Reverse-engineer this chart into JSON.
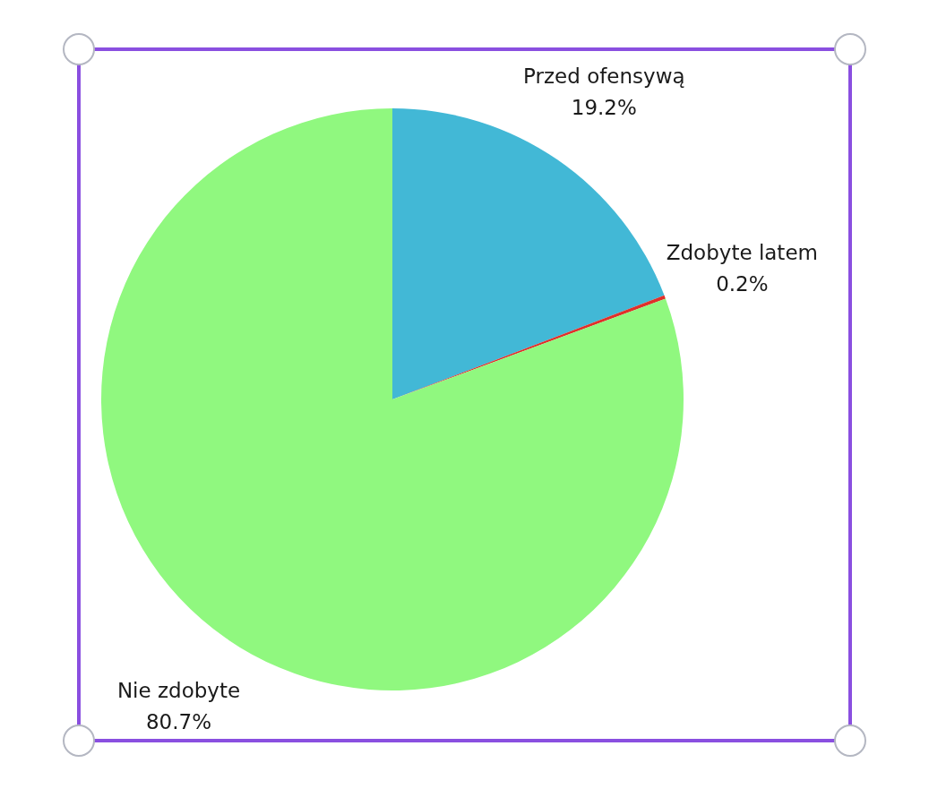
{
  "chart_data": {
    "type": "pie",
    "categories": [
      "Przed ofensywą",
      "Zdobyte latem",
      "Nie zdobyte"
    ],
    "values": [
      19.2,
      0.2,
      80.7
    ],
    "colors": [
      "#42b8d6",
      "#e0302a",
      "#90f87f"
    ],
    "value_labels": [
      "19.2%",
      "0.2%",
      "80.7%"
    ]
  }
}
